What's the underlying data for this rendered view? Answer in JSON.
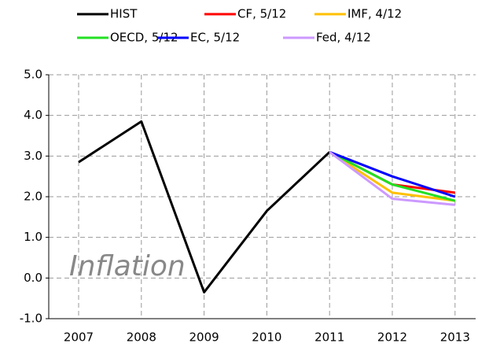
{
  "chart_data": {
    "type": "line",
    "annotation": "Inflation",
    "categories": [
      "2007",
      "2008",
      "2009",
      "2010",
      "2011",
      "2012",
      "2013"
    ],
    "series": [
      {
        "name": "HIST",
        "color": "#000000",
        "values": [
          2.85,
          3.85,
          -0.35,
          1.65,
          3.1,
          null,
          null
        ]
      },
      {
        "name": "CF, 5/12",
        "color": "#ff0000",
        "values": [
          null,
          null,
          null,
          null,
          3.1,
          2.3,
          2.1
        ]
      },
      {
        "name": "IMF, 4/12",
        "color": "#ffc000",
        "values": [
          null,
          null,
          null,
          null,
          3.1,
          2.1,
          1.9
        ]
      },
      {
        "name": "OECD, 5/12",
        "color": "#22e022",
        "values": [
          null,
          null,
          null,
          null,
          3.1,
          2.3,
          1.9
        ]
      },
      {
        "name": "EC, 5/12",
        "color": "#0000ff",
        "values": [
          null,
          null,
          null,
          null,
          3.1,
          2.5,
          2.0
        ]
      },
      {
        "name": "Fed, 4/12",
        "color": "#cc99ff",
        "values": [
          null,
          null,
          null,
          null,
          3.1,
          1.95,
          1.8
        ]
      }
    ],
    "ylim": [
      -1,
      5
    ],
    "yticks": [
      {
        "value": -1,
        "label": "-1.0"
      },
      {
        "value": 0,
        "label": "0.0"
      },
      {
        "value": 1,
        "label": "1.0"
      },
      {
        "value": 2,
        "label": "2.0"
      },
      {
        "value": 3,
        "label": "3.0"
      },
      {
        "value": 4,
        "label": "4.0"
      },
      {
        "value": 5,
        "label": "5.0"
      }
    ],
    "grid": true,
    "legend": "top"
  }
}
